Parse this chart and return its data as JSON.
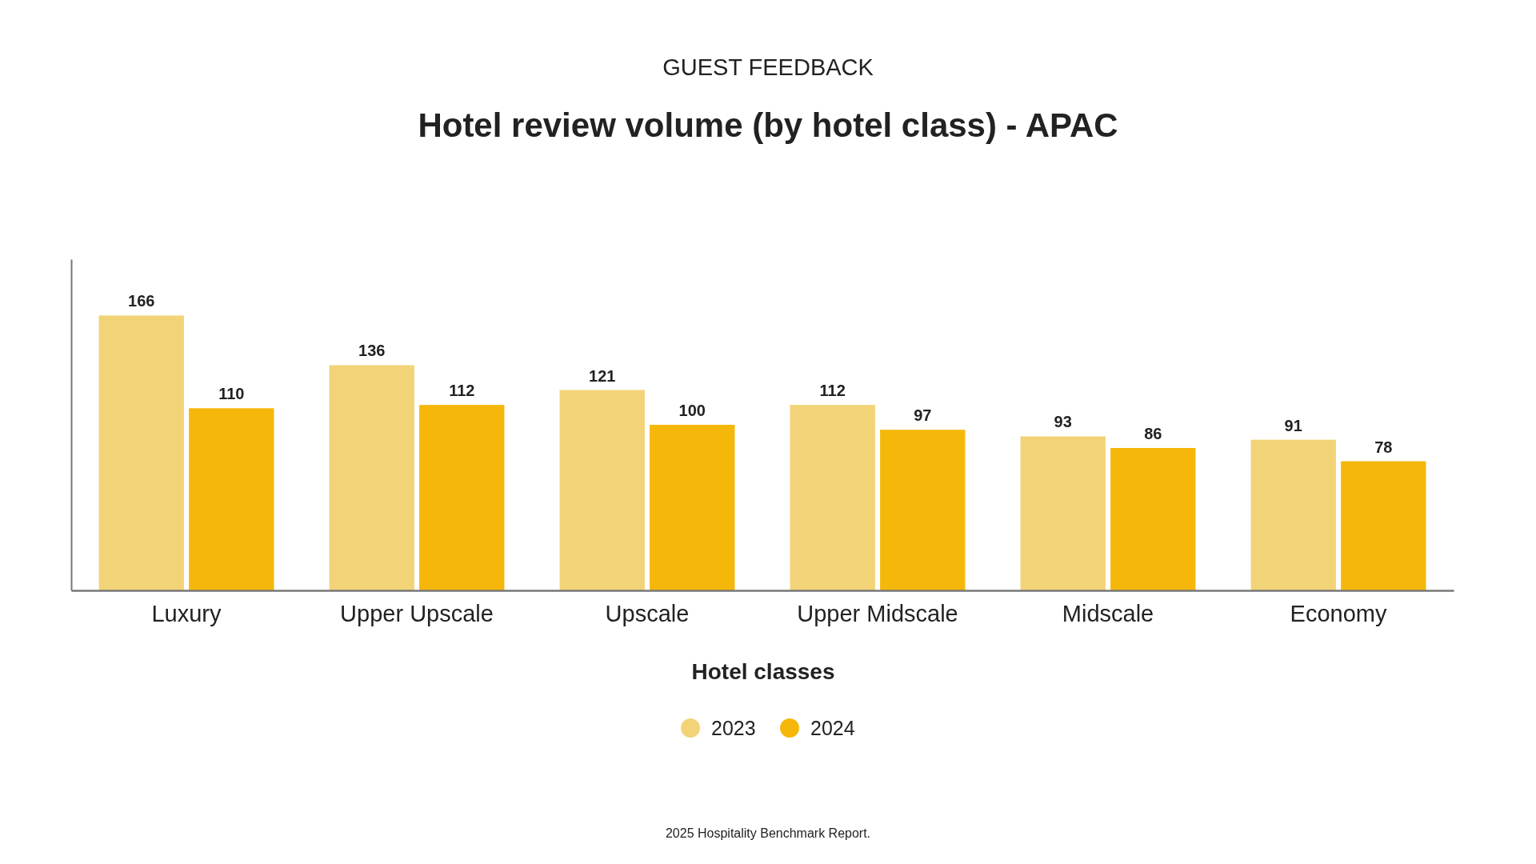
{
  "chart_data": {
    "type": "bar",
    "subtitle": "GUEST FEEDBACK",
    "title": "Hotel review volume (by hotel class) - APAC",
    "xlabel": "Hotel classes",
    "categories": [
      "Luxury",
      "Upper Upscale",
      "Upscale",
      "Upper Midscale",
      "Midscale",
      "Economy"
    ],
    "series": [
      {
        "name": "2023",
        "color": "#f2d377",
        "values": [
          166,
          136,
          121,
          112,
          93,
          91
        ]
      },
      {
        "name": "2024",
        "color": "#f5b70a",
        "values": [
          110,
          112,
          100,
          97,
          86,
          78
        ]
      }
    ],
    "ylim": [
      0,
      200
    ],
    "tick_labels": "x",
    "data_labels": true,
    "legend": "bottom",
    "annotations": [
      "2025 Hospitality Benchmark Report."
    ]
  }
}
